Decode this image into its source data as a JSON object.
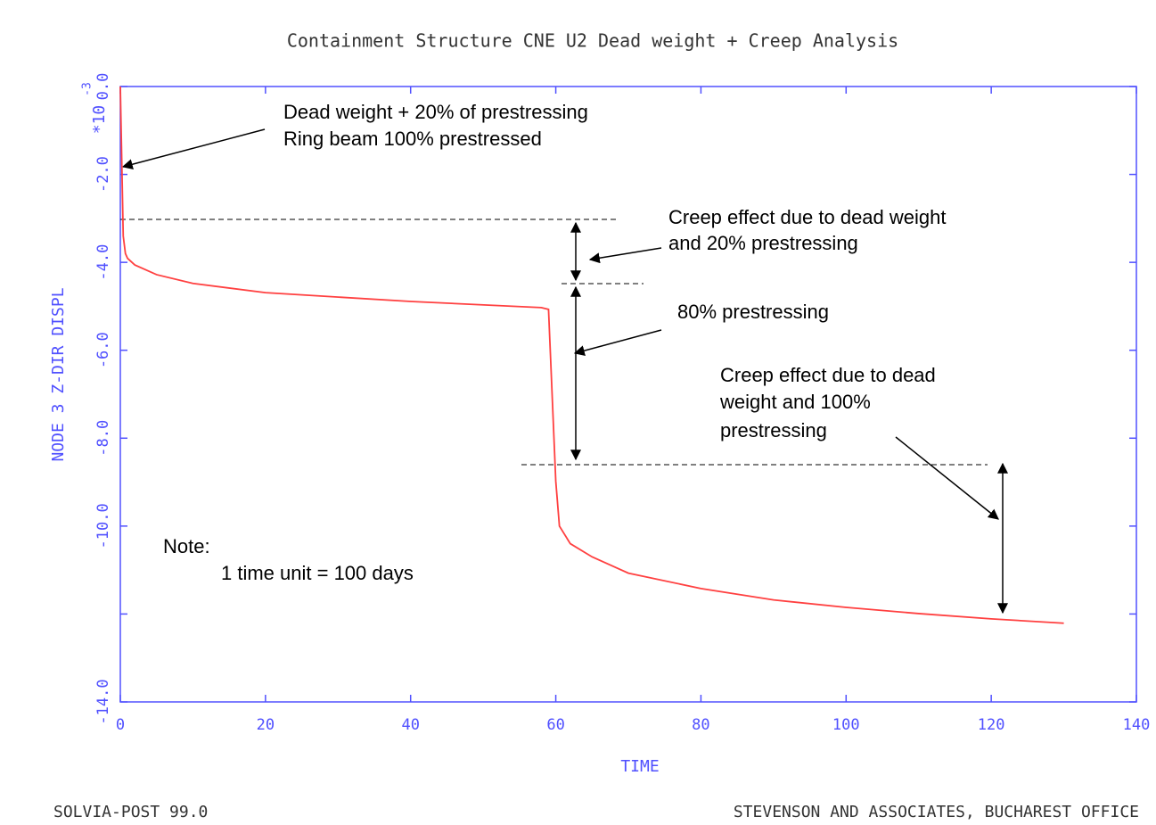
{
  "chart_data": {
    "type": "line",
    "title": "Containment Structure CNE U2 Dead weight + Creep Analysis",
    "x_label": "TIME",
    "y_label": "NODE 3 Z-DIR DISPL",
    "y_multiplier": "*10",
    "y_multiplier_exp": "-3",
    "xlim": [
      0,
      140
    ],
    "ylim": [
      -14,
      0
    ],
    "xticks": [
      0,
      20,
      40,
      60,
      80,
      100,
      120,
      140
    ],
    "yticks": [
      {
        "value": 0,
        "label": "0.0"
      },
      {
        "value": -2,
        "label": "-2.0"
      },
      {
        "value": -4,
        "label": "-4.0"
      },
      {
        "value": -6,
        "label": "-6.0"
      },
      {
        "value": -8,
        "label": "-8.0"
      },
      {
        "value": -10,
        "label": "-10.0"
      },
      {
        "value": -12
      },
      {
        "value": -14,
        "label": "-14.0"
      }
    ],
    "axis_color": "#5050ff",
    "x": [
      0,
      0.2,
      0.4,
      0.7,
      1,
      2,
      5,
      10,
      20,
      40,
      58,
      59,
      60,
      60.5,
      62,
      65,
      70,
      80,
      90,
      100,
      110,
      120,
      130
    ],
    "series": [
      {
        "color": "#ff4040",
        "values": [
          0,
          -1.7,
          -3.4,
          -3.8,
          -3.91,
          -4.06,
          -4.28,
          -4.48,
          -4.69,
          -4.89,
          -5.03,
          -5.07,
          -8.98,
          -10.0,
          -10.4,
          -10.7,
          -11.07,
          -11.42,
          -11.68,
          -11.85,
          -11.99,
          -12.11,
          -12.21
        ]
      }
    ],
    "annotations": [
      "Dead weight + 20% of prestressing",
      "Ring beam 100% prestressed",
      "Creep effect due to dead weight",
      "and 20% prestressing",
      "80% prestressing",
      "Creep effect due to dead",
      "weight and 100%",
      "prestressing",
      "Note:",
      "1 time unit = 100 days"
    ],
    "footer_left": "SOLVIA-POST 99.0",
    "footer_right": "STEVENSON AND ASSOCIATES, BUCHAREST OFFICE"
  }
}
